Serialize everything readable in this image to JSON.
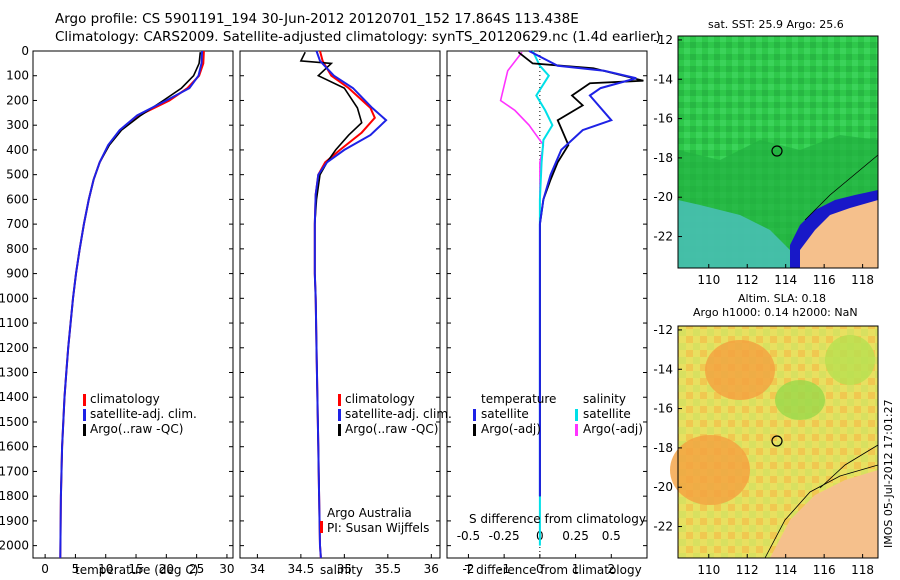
{
  "header": {
    "line1": "Argo profile: CS 5901191_194 30-Jun-2012 20120701_152 17.864S 113.438E",
    "line2": "Climatology: CARS2009. Satellite-adjusted climatology: synTS_20120629.nc (1.4d earlier)"
  },
  "colors": {
    "climatology": "#ff0000",
    "satellite": "#1e22e6",
    "argo": "#000000",
    "cyan": "#00e0e8",
    "magenta": "#ff33ff",
    "land": "#f5c08c"
  },
  "depth_ticks": [
    "0",
    "100",
    "200",
    "300",
    "400",
    "500",
    "600",
    "700",
    "800",
    "900",
    "1000",
    "1100",
    "1200",
    "1300",
    "1400",
    "1500",
    "1600",
    "1700",
    "1800",
    "1900",
    "2000"
  ],
  "panels": {
    "temperature": {
      "xlabel": "temperature (deg C)",
      "xticks": [
        "0",
        "5",
        "10",
        "15",
        "20",
        "25",
        "30"
      ],
      "legend": [
        "climatology",
        "satellite-adj. clim.",
        "Argo(..raw -QC)"
      ]
    },
    "salinity": {
      "xlabel": "salinity",
      "xticks": [
        "34",
        "34.5",
        "35",
        "35.5",
        "36"
      ],
      "legend": [
        "climatology",
        "satellite-adj. clim.",
        "Argo(..raw -QC)"
      ],
      "credit1": "Argo Australia",
      "credit2": "PI: Susan Wijffels"
    },
    "difference": {
      "xlabel": "T difference from climatology",
      "toplabel": "S difference from climatology",
      "xticks": [
        "-2",
        "-1",
        "0",
        "1",
        "2"
      ],
      "top_xticks": [
        "-0.5",
        "-0.25",
        "0",
        "0.25",
        "0.5"
      ],
      "legend_temp_title": "temperature",
      "legend_temp": [
        "satellite",
        "Argo(-adj)"
      ],
      "legend_sal_title": "salinity",
      "legend_sal": [
        "satellite",
        "Argo(-adj)"
      ]
    }
  },
  "maps": {
    "sst": {
      "title": "sat. SST: 25.9  Argo: 25.6",
      "yticks": [
        "-12",
        "-14",
        "-16",
        "-18",
        "-20",
        "-22"
      ],
      "xticks": [
        "110",
        "112",
        "114",
        "116",
        "118"
      ]
    },
    "sla": {
      "title1": "Altim. SLA: 0.18",
      "title2": "Argo h1000: 0.14 h2000: NaN",
      "yticks": [
        "-12",
        "-14",
        "-16",
        "-18",
        "-20",
        "-22"
      ],
      "xticks": [
        "110",
        "112",
        "114",
        "116",
        "118"
      ]
    },
    "stamp": "IMOS 05-Jul-2012 17:01:27"
  },
  "chart_data": [
    {
      "type": "line",
      "xlabel": "temperature (deg C)",
      "ylabel": "",
      "xlim": [
        -2,
        31
      ],
      "ylim": [
        2050,
        0
      ],
      "series": [
        {
          "name": "climatology",
          "x": [
            26.2,
            26.1,
            25.4,
            23.5,
            20.5,
            15.5,
            12.5,
            10.5,
            9.0,
            8.0,
            7.2,
            6.4,
            5.7,
            5.1,
            4.6,
            4.2,
            3.8,
            3.5,
            3.2,
            3.0,
            2.8,
            2.6,
            2.5
          ],
          "y": [
            0,
            50,
            100,
            150,
            200,
            260,
            320,
            380,
            450,
            520,
            600,
            700,
            800,
            900,
            1000,
            1100,
            1200,
            1300,
            1400,
            1500,
            1600,
            1800,
            2050
          ]
        },
        {
          "name": "satellite-adj. clim.",
          "x": [
            25.9,
            25.8,
            25.3,
            23.8,
            20.0,
            15.2,
            12.3,
            10.4,
            9.0,
            8.0,
            7.2,
            6.4,
            5.7,
            5.1,
            4.6,
            4.2,
            3.8,
            3.5,
            3.2,
            3.0,
            2.8,
            2.6,
            2.5
          ],
          "y": [
            0,
            50,
            100,
            150,
            200,
            260,
            320,
            380,
            450,
            520,
            600,
            700,
            800,
            900,
            1000,
            1100,
            1200,
            1300,
            1400,
            1500,
            1600,
            1800,
            2050
          ]
        },
        {
          "name": "Argo(..raw -QC)",
          "x": [
            25.6,
            25.4,
            24.5,
            22.5,
            19.5,
            15.8,
            12.6,
            10.6,
            9.0,
            8.0,
            7.2,
            6.4,
            5.7,
            5.1,
            4.6,
            4.2,
            3.8,
            3.5,
            3.2,
            3.0,
            2.8,
            2.6
          ],
          "y": [
            5,
            50,
            100,
            150,
            200,
            260,
            320,
            380,
            450,
            520,
            600,
            700,
            800,
            900,
            1000,
            1100,
            1200,
            1300,
            1400,
            1500,
            1600,
            1800
          ]
        }
      ]
    },
    {
      "type": "line",
      "xlabel": "salinity",
      "ylabel": "",
      "xlim": [
        33.8,
        36.1
      ],
      "ylim": [
        2050,
        0
      ],
      "series": [
        {
          "name": "climatology",
          "x": [
            34.72,
            34.75,
            34.85,
            35.05,
            35.3,
            35.35,
            35.2,
            34.95,
            34.78,
            34.7,
            34.67,
            34.66,
            34.66,
            34.66,
            34.67,
            34.68,
            34.69,
            34.7,
            34.71,
            34.72,
            34.73
          ],
          "y": [
            0,
            40,
            100,
            150,
            230,
            270,
            330,
            400,
            450,
            500,
            580,
            700,
            800,
            900,
            1000,
            1200,
            1400,
            1600,
            1800,
            2000,
            2050
          ]
        },
        {
          "name": "satellite-adj. clim.",
          "x": [
            34.68,
            34.72,
            34.88,
            35.1,
            35.32,
            35.48,
            35.3,
            35.0,
            34.8,
            34.7,
            34.67,
            34.66,
            34.66,
            34.66,
            34.67,
            34.68,
            34.69,
            34.7,
            34.71,
            34.72,
            34.73
          ],
          "y": [
            0,
            40,
            100,
            150,
            230,
            280,
            340,
            400,
            450,
            500,
            580,
            700,
            800,
            900,
            1000,
            1200,
            1400,
            1600,
            1800,
            2000,
            2050
          ]
        },
        {
          "name": "Argo(..raw -QC)",
          "x": [
            34.55,
            34.5,
            34.85,
            34.7,
            35.0,
            35.15,
            35.2,
            35.05,
            34.9,
            34.8,
            34.72,
            34.68,
            34.66,
            34.66,
            34.66,
            34.67,
            34.68,
            34.69,
            34.7,
            34.71
          ],
          "y": [
            5,
            40,
            50,
            100,
            150,
            230,
            290,
            340,
            400,
            450,
            500,
            600,
            700,
            800,
            900,
            1000,
            1200,
            1400,
            1600,
            1800
          ]
        }
      ]
    },
    {
      "type": "line",
      "xlabel": "T difference from climatology",
      "ylabel": "",
      "xlim": [
        -2.6,
        3.0
      ],
      "ylim": [
        2050,
        0
      ],
      "series": [
        {
          "name": "satellite",
          "x": [
            -0.3,
            0.5,
            1.8,
            2.7,
            1.7,
            1.4,
            2.0,
            1.2,
            0.6,
            0.3,
            0.1,
            0.0,
            0.0,
            0.0
          ],
          "y": [
            0,
            60,
            80,
            110,
            150,
            180,
            280,
            320,
            400,
            500,
            600,
            700,
            1000,
            1800
          ]
        },
        {
          "name": "Argo(-adj)",
          "x": [
            -0.6,
            -0.2,
            1.5,
            2.9,
            1.4,
            0.9,
            1.2,
            0.5,
            0.8,
            0.5,
            0.3,
            0.1,
            0.0,
            0.0
          ],
          "y": [
            5,
            50,
            70,
            120,
            130,
            180,
            220,
            280,
            380,
            450,
            520,
            600,
            700,
            1800
          ]
        },
        {
          "name": "salinity satellite",
          "x": [
            -0.2,
            0.0,
            0.25,
            -0.1,
            0.15,
            0.35,
            0.1,
            0.05,
            0.0,
            0.0,
            0.0
          ],
          "y": [
            0,
            60,
            100,
            180,
            240,
            300,
            360,
            450,
            600,
            1000,
            2000
          ]
        },
        {
          "name": "salinity Argo(-adj)",
          "x": [
            -0.5,
            -0.9,
            -1.1,
            -0.7,
            -0.3,
            0.1,
            0.0,
            0.0,
            0.0
          ],
          "y": [
            5,
            80,
            200,
            240,
            300,
            380,
            450,
            600,
            1800
          ]
        }
      ]
    }
  ]
}
